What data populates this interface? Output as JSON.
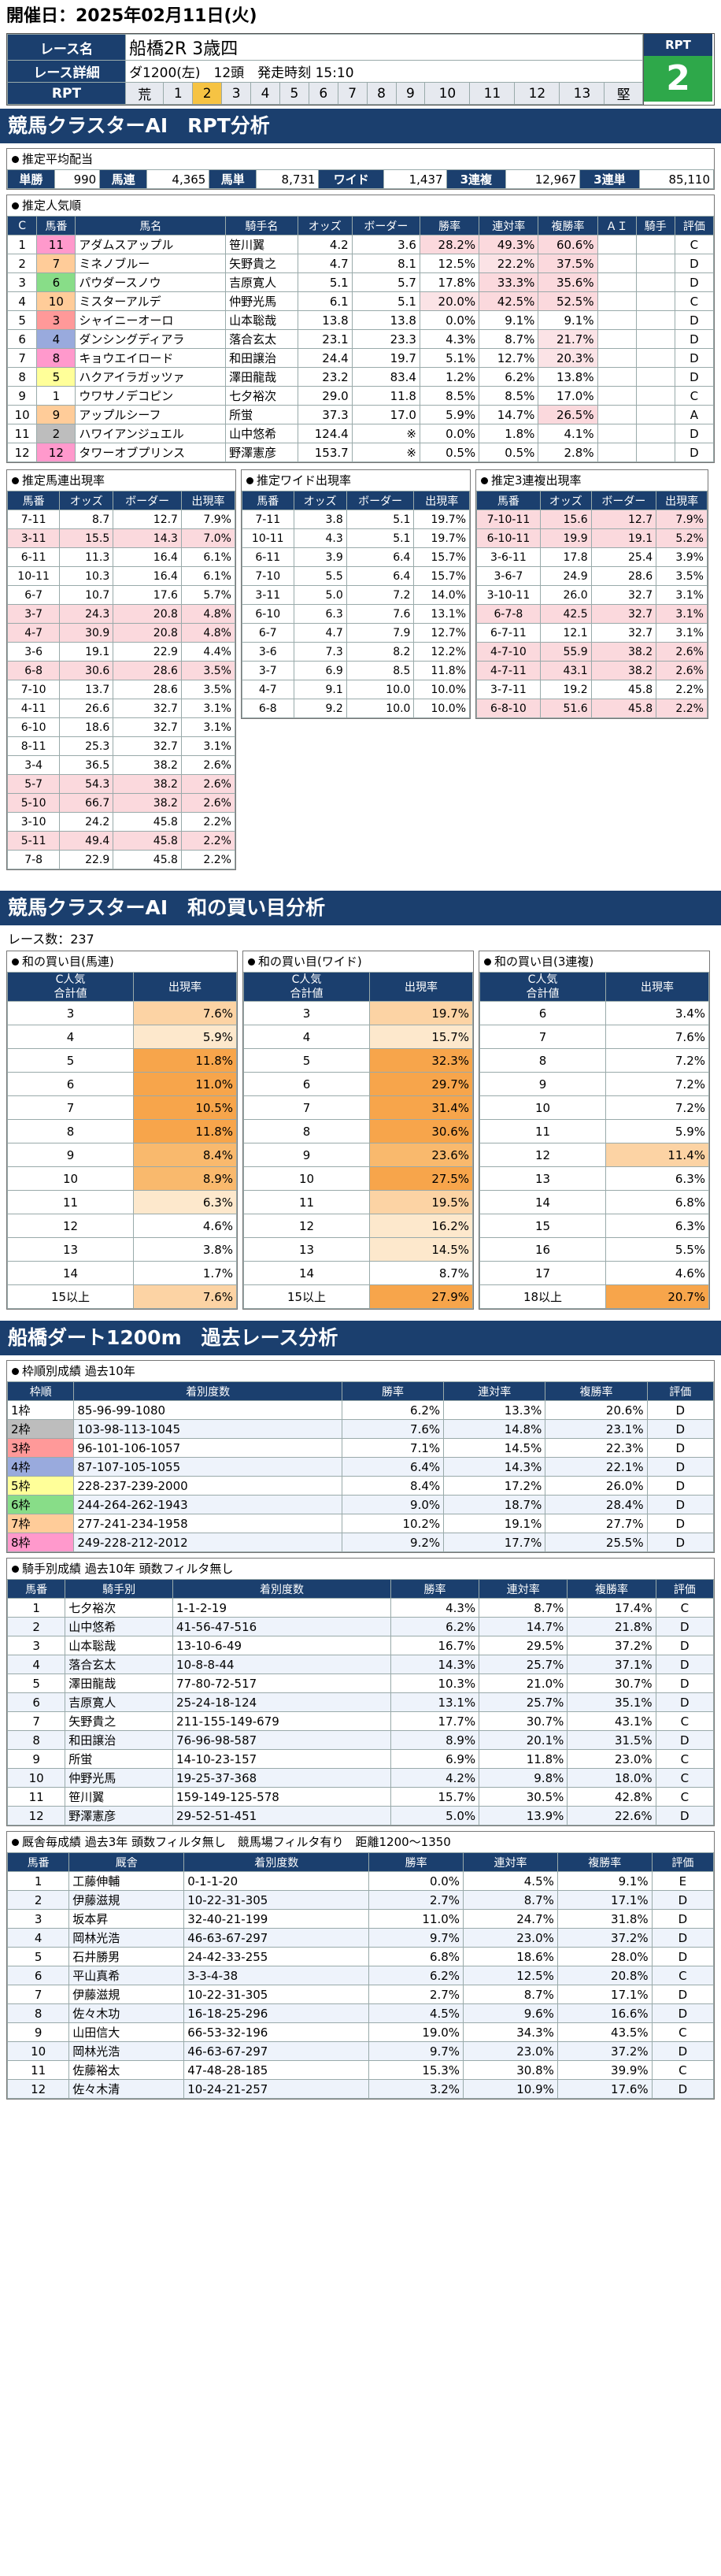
{
  "header": {
    "date": "開催日：2025年02月11日(火)"
  },
  "race": {
    "name_label": "レース名",
    "name": "船橋2R 3歳四",
    "detail_label": "レース詳細",
    "detail": "ダ1200(左)　12頭　発走時刻 15:10",
    "rpt_label": "RPT",
    "rpt_big": "2",
    "rpt_head": "RPT",
    "rpt_cells": [
      "荒",
      "1",
      "2",
      "3",
      "4",
      "5",
      "6",
      "7",
      "8",
      "9",
      "10",
      "11",
      "12",
      "13",
      "堅"
    ],
    "rpt_selected": "2"
  },
  "sec1": {
    "title": "競馬クラスターAI　RPT分析"
  },
  "payout": {
    "title": "推定平均配当",
    "cells": [
      "単勝",
      "990",
      "馬連",
      "4,365",
      "馬単",
      "8,731",
      "ワイド",
      "1,437",
      "3連複",
      "12,967",
      "3連単",
      "85,110"
    ]
  },
  "pop": {
    "title": "推定人気順",
    "headers": [
      "C",
      "馬番",
      "馬名",
      "騎手名",
      "オッズ",
      "ボーダー",
      "勝率",
      "連対率",
      "複勝率",
      "ＡＩ",
      "騎手",
      "評価"
    ],
    "rows": [
      [
        "1",
        "11",
        "アダムスアップル",
        "笹川翼",
        "4.2",
        "3.6",
        "28.2%",
        "49.3%",
        "60.6%",
        "",
        "",
        "C"
      ],
      [
        "2",
        "7",
        "ミネノブルー",
        "矢野貴之",
        "4.7",
        "8.1",
        "12.5%",
        "22.2%",
        "37.5%",
        "",
        "",
        "D"
      ],
      [
        "3",
        "6",
        "パウダースノウ",
        "吉原寛人",
        "5.1",
        "5.7",
        "17.8%",
        "33.3%",
        "35.6%",
        "",
        "",
        "D"
      ],
      [
        "4",
        "10",
        "ミスターアルデ",
        "仲野光馬",
        "6.1",
        "5.1",
        "20.0%",
        "42.5%",
        "52.5%",
        "",
        "",
        "C"
      ],
      [
        "5",
        "3",
        "シャイニーオーロ",
        "山本聡哉",
        "13.8",
        "13.8",
        "0.0%",
        "9.1%",
        "9.1%",
        "",
        "",
        "D"
      ],
      [
        "6",
        "4",
        "ダンシングディアラ",
        "落合玄太",
        "23.1",
        "23.3",
        "4.3%",
        "8.7%",
        "21.7%",
        "",
        "",
        "D"
      ],
      [
        "7",
        "8",
        "キョウエイロード",
        "和田譲治",
        "24.4",
        "19.7",
        "5.1%",
        "12.7%",
        "20.3%",
        "",
        "",
        "D"
      ],
      [
        "8",
        "5",
        "ハクアイラガッツァ",
        "澤田龍哉",
        "23.2",
        "83.4",
        "1.2%",
        "6.2%",
        "13.8%",
        "",
        "",
        "D"
      ],
      [
        "9",
        "1",
        "ウワサノデコピン",
        "七夕裕次",
        "29.0",
        "11.8",
        "8.5%",
        "8.5%",
        "17.0%",
        "",
        "",
        "C"
      ],
      [
        "10",
        "9",
        "アップルシーフ",
        "所蛍",
        "37.3",
        "17.0",
        "5.9%",
        "14.7%",
        "26.5%",
        "",
        "",
        "A"
      ],
      [
        "11",
        "2",
        "ハワイアンジュエル",
        "山中悠希",
        "124.4",
        "※",
        "0.0%",
        "1.8%",
        "4.1%",
        "",
        "",
        "D"
      ],
      [
        "12",
        "12",
        "タワーオブプリンス",
        "野澤憲彦",
        "153.7",
        "※",
        "0.5%",
        "0.5%",
        "2.8%",
        "",
        "",
        "D"
      ]
    ]
  },
  "umaren": {
    "title": "推定馬連出現率",
    "headers": [
      "馬番",
      "オッズ",
      "ボーダー",
      "出現率"
    ],
    "rows": [
      [
        "7-11",
        "8.7",
        "12.7",
        "7.9%"
      ],
      [
        "3-11",
        "15.5",
        "14.3",
        "7.0%"
      ],
      [
        "6-11",
        "11.3",
        "16.4",
        "6.1%"
      ],
      [
        "10-11",
        "10.3",
        "16.4",
        "6.1%"
      ],
      [
        "6-7",
        "10.7",
        "17.6",
        "5.7%"
      ],
      [
        "3-7",
        "24.3",
        "20.8",
        "4.8%"
      ],
      [
        "4-7",
        "30.9",
        "20.8",
        "4.8%"
      ],
      [
        "3-6",
        "19.1",
        "22.9",
        "4.4%"
      ],
      [
        "6-8",
        "30.6",
        "28.6",
        "3.5%"
      ],
      [
        "7-10",
        "13.7",
        "28.6",
        "3.5%"
      ],
      [
        "4-11",
        "26.6",
        "32.7",
        "3.1%"
      ],
      [
        "6-10",
        "18.6",
        "32.7",
        "3.1%"
      ],
      [
        "8-11",
        "25.3",
        "32.7",
        "3.1%"
      ],
      [
        "3-4",
        "36.5",
        "38.2",
        "2.6%"
      ],
      [
        "5-7",
        "54.3",
        "38.2",
        "2.6%"
      ],
      [
        "5-10",
        "66.7",
        "38.2",
        "2.6%"
      ],
      [
        "3-10",
        "24.2",
        "45.8",
        "2.2%"
      ],
      [
        "5-11",
        "49.4",
        "45.8",
        "2.2%"
      ],
      [
        "7-8",
        "22.9",
        "45.8",
        "2.2%"
      ]
    ]
  },
  "wide": {
    "title": "推定ワイド出現率",
    "headers": [
      "馬番",
      "オッズ",
      "ボーダー",
      "出現率"
    ],
    "rows": [
      [
        "7-11",
        "3.8",
        "5.1",
        "19.7%"
      ],
      [
        "10-11",
        "4.3",
        "5.1",
        "19.7%"
      ],
      [
        "6-11",
        "3.9",
        "6.4",
        "15.7%"
      ],
      [
        "7-10",
        "5.5",
        "6.4",
        "15.7%"
      ],
      [
        "3-11",
        "5.0",
        "7.2",
        "14.0%"
      ],
      [
        "6-10",
        "6.3",
        "7.6",
        "13.1%"
      ],
      [
        "6-7",
        "4.7",
        "7.9",
        "12.7%"
      ],
      [
        "3-6",
        "7.3",
        "8.2",
        "12.2%"
      ],
      [
        "3-7",
        "6.9",
        "8.5",
        "11.8%"
      ],
      [
        "4-7",
        "9.1",
        "10.0",
        "10.0%"
      ],
      [
        "6-8",
        "9.2",
        "10.0",
        "10.0%"
      ]
    ]
  },
  "sanren": {
    "title": "推定3連複出現率",
    "headers": [
      "馬番",
      "オッズ",
      "ボーダー",
      "出現率"
    ],
    "rows": [
      [
        "7-10-11",
        "15.6",
        "12.7",
        "7.9%"
      ],
      [
        "6-10-11",
        "19.9",
        "19.1",
        "5.2%"
      ],
      [
        "3-6-11",
        "17.8",
        "25.4",
        "3.9%"
      ],
      [
        "3-6-7",
        "24.9",
        "28.6",
        "3.5%"
      ],
      [
        "3-10-11",
        "26.0",
        "32.7",
        "3.1%"
      ],
      [
        "6-7-8",
        "42.5",
        "32.7",
        "3.1%"
      ],
      [
        "6-7-11",
        "12.1",
        "32.7",
        "3.1%"
      ],
      [
        "4-7-10",
        "55.9",
        "38.2",
        "2.6%"
      ],
      [
        "4-7-11",
        "43.1",
        "38.2",
        "2.6%"
      ],
      [
        "3-7-11",
        "19.2",
        "45.8",
        "2.2%"
      ],
      [
        "6-8-10",
        "51.6",
        "45.8",
        "2.2%"
      ]
    ]
  },
  "sec2": {
    "title": "競馬クラスターAI　和の買い目分析",
    "races": "レース数：237"
  },
  "wa": [
    {
      "title": "和の買い目(馬連)",
      "h1": "C人気",
      "h2": "合計値",
      "h3": "出現率",
      "rows": [
        [
          "3",
          "7.6%"
        ],
        [
          "4",
          "5.9%"
        ],
        [
          "5",
          "11.8%"
        ],
        [
          "6",
          "11.0%"
        ],
        [
          "7",
          "10.5%"
        ],
        [
          "8",
          "11.8%"
        ],
        [
          "9",
          "8.4%"
        ],
        [
          "10",
          "8.9%"
        ],
        [
          "11",
          "6.3%"
        ],
        [
          "12",
          "4.6%"
        ],
        [
          "13",
          "3.8%"
        ],
        [
          "14",
          "1.7%"
        ],
        [
          "15以上",
          "7.6%"
        ]
      ]
    },
    {
      "title": "和の買い目(ワイド)",
      "h1": "C人気",
      "h2": "合計値",
      "h3": "出現率",
      "rows": [
        [
          "3",
          "19.7%"
        ],
        [
          "4",
          "15.7%"
        ],
        [
          "5",
          "32.3%"
        ],
        [
          "6",
          "29.7%"
        ],
        [
          "7",
          "31.4%"
        ],
        [
          "8",
          "30.6%"
        ],
        [
          "9",
          "23.6%"
        ],
        [
          "10",
          "27.5%"
        ],
        [
          "11",
          "19.5%"
        ],
        [
          "12",
          "16.2%"
        ],
        [
          "13",
          "14.5%"
        ],
        [
          "14",
          "8.7%"
        ],
        [
          "15以上",
          "27.9%"
        ]
      ]
    },
    {
      "title": "和の買い目(3連複)",
      "h1": "C人気",
      "h2": "合計値",
      "h3": "出現率",
      "rows": [
        [
          "6",
          "3.4%"
        ],
        [
          "7",
          "7.6%"
        ],
        [
          "8",
          "7.2%"
        ],
        [
          "9",
          "7.2%"
        ],
        [
          "10",
          "7.2%"
        ],
        [
          "11",
          "5.9%"
        ],
        [
          "12",
          "11.4%"
        ],
        [
          "13",
          "6.3%"
        ],
        [
          "14",
          "6.8%"
        ],
        [
          "15",
          "6.3%"
        ],
        [
          "16",
          "5.5%"
        ],
        [
          "17",
          "4.6%"
        ],
        [
          "18以上",
          "20.7%"
        ]
      ]
    }
  ],
  "sec3": {
    "title": "船橋ダート1200m　過去レース分析"
  },
  "waku": {
    "title": "枠順別成績 過去10年",
    "headers": [
      "枠順",
      "着別度数",
      "勝率",
      "連対率",
      "複勝率",
      "評価"
    ],
    "rows": [
      [
        "1枠",
        "85-96-99-1080",
        "6.2%",
        "13.3%",
        "20.6%",
        "D"
      ],
      [
        "2枠",
        "103-98-113-1045",
        "7.6%",
        "14.8%",
        "23.1%",
        "D"
      ],
      [
        "3枠",
        "96-101-106-1057",
        "7.1%",
        "14.5%",
        "22.3%",
        "D"
      ],
      [
        "4枠",
        "87-107-105-1055",
        "6.4%",
        "14.3%",
        "22.1%",
        "D"
      ],
      [
        "5枠",
        "228-237-239-2000",
        "8.4%",
        "17.2%",
        "26.0%",
        "D"
      ],
      [
        "6枠",
        "244-264-262-1943",
        "9.0%",
        "18.7%",
        "28.4%",
        "D"
      ],
      [
        "7枠",
        "277-241-234-1958",
        "10.2%",
        "19.1%",
        "27.7%",
        "D"
      ],
      [
        "8枠",
        "249-228-212-2012",
        "9.2%",
        "17.7%",
        "25.5%",
        "D"
      ]
    ]
  },
  "jockey": {
    "title": "騎手別成績 過去10年 頭数フィルタ無し",
    "headers": [
      "馬番",
      "騎手別",
      "着別度数",
      "勝率",
      "連対率",
      "複勝率",
      "評価"
    ],
    "rows": [
      [
        "1",
        "七夕裕次",
        "1-1-2-19",
        "4.3%",
        "8.7%",
        "17.4%",
        "C"
      ],
      [
        "2",
        "山中悠希",
        "41-56-47-516",
        "6.2%",
        "14.7%",
        "21.8%",
        "D"
      ],
      [
        "3",
        "山本聡哉",
        "13-10-6-49",
        "16.7%",
        "29.5%",
        "37.2%",
        "D"
      ],
      [
        "4",
        "落合玄太",
        "10-8-8-44",
        "14.3%",
        "25.7%",
        "37.1%",
        "D"
      ],
      [
        "5",
        "澤田龍哉",
        "77-80-72-517",
        "10.3%",
        "21.0%",
        "30.7%",
        "D"
      ],
      [
        "6",
        "吉原寛人",
        "25-24-18-124",
        "13.1%",
        "25.7%",
        "35.1%",
        "D"
      ],
      [
        "7",
        "矢野貴之",
        "211-155-149-679",
        "17.7%",
        "30.7%",
        "43.1%",
        "C"
      ],
      [
        "8",
        "和田譲治",
        "76-96-98-587",
        "8.9%",
        "20.1%",
        "31.5%",
        "D"
      ],
      [
        "9",
        "所蛍",
        "14-10-23-157",
        "6.9%",
        "11.8%",
        "23.0%",
        "C"
      ],
      [
        "10",
        "仲野光馬",
        "19-25-37-368",
        "4.2%",
        "9.8%",
        "18.0%",
        "C"
      ],
      [
        "11",
        "笹川翼",
        "159-149-125-578",
        "15.7%",
        "30.5%",
        "42.8%",
        "C"
      ],
      [
        "12",
        "野澤憲彦",
        "29-52-51-451",
        "5.0%",
        "13.9%",
        "22.6%",
        "D"
      ]
    ]
  },
  "trainer": {
    "title": "厩舎毎成績 過去3年 頭数フィルタ無し　競馬場フィルタ有り　距離1200～1350",
    "headers": [
      "馬番",
      "厩舎",
      "着別度数",
      "勝率",
      "連対率",
      "複勝率",
      "評価"
    ],
    "rows": [
      [
        "1",
        "工藤伸輔",
        "0-1-1-20",
        "0.0%",
        "4.5%",
        "9.1%",
        "E"
      ],
      [
        "2",
        "伊藤滋規",
        "10-22-31-305",
        "2.7%",
        "8.7%",
        "17.1%",
        "D"
      ],
      [
        "3",
        "坂本昇",
        "32-40-21-199",
        "11.0%",
        "24.7%",
        "31.8%",
        "D"
      ],
      [
        "4",
        "岡林光浩",
        "46-63-67-297",
        "9.7%",
        "23.0%",
        "37.2%",
        "D"
      ],
      [
        "5",
        "石井勝男",
        "24-42-33-255",
        "6.8%",
        "18.6%",
        "28.0%",
        "D"
      ],
      [
        "6",
        "平山真希",
        "3-3-4-38",
        "6.2%",
        "12.5%",
        "20.8%",
        "C"
      ],
      [
        "7",
        "伊藤滋規",
        "10-22-31-305",
        "2.7%",
        "8.7%",
        "17.1%",
        "D"
      ],
      [
        "8",
        "佐々木功",
        "16-18-25-296",
        "4.5%",
        "9.6%",
        "16.6%",
        "D"
      ],
      [
        "9",
        "山田信大",
        "66-53-32-196",
        "19.0%",
        "34.3%",
        "43.5%",
        "C"
      ],
      [
        "10",
        "岡林光浩",
        "46-63-67-297",
        "9.7%",
        "23.0%",
        "37.2%",
        "D"
      ],
      [
        "11",
        "佐藤裕太",
        "47-48-28-185",
        "15.3%",
        "30.8%",
        "39.9%",
        "C"
      ],
      [
        "12",
        "佐々木清",
        "10-24-21-257",
        "3.2%",
        "10.9%",
        "17.6%",
        "D"
      ]
    ]
  }
}
